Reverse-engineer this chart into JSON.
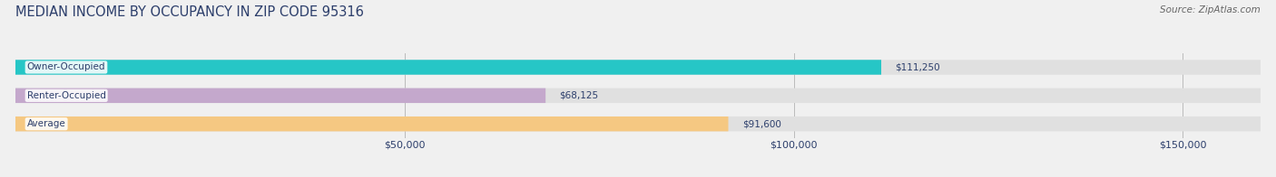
{
  "title": "MEDIAN INCOME BY OCCUPANCY IN ZIP CODE 95316",
  "source": "Source: ZipAtlas.com",
  "categories": [
    "Owner-Occupied",
    "Renter-Occupied",
    "Average"
  ],
  "values": [
    111250,
    68125,
    91600
  ],
  "labels": [
    "$111,250",
    "$68,125",
    "$91,600"
  ],
  "bar_colors": [
    "#26c6c6",
    "#c4a8cc",
    "#f5c882"
  ],
  "background_color": "#f0f0f0",
  "bar_bg_color": "#e0e0e0",
  "xlim": [
    0,
    160000
  ],
  "xticks": [
    50000,
    100000,
    150000
  ],
  "xticklabels": [
    "$50,000",
    "$100,000",
    "$150,000"
  ],
  "title_color": "#2c3e6b",
  "source_color": "#666666",
  "label_color": "#2c3e6b",
  "category_color": "#2c3e6b",
  "title_fontsize": 10.5,
  "source_fontsize": 7.5,
  "tick_fontsize": 8,
  "bar_height": 0.52
}
